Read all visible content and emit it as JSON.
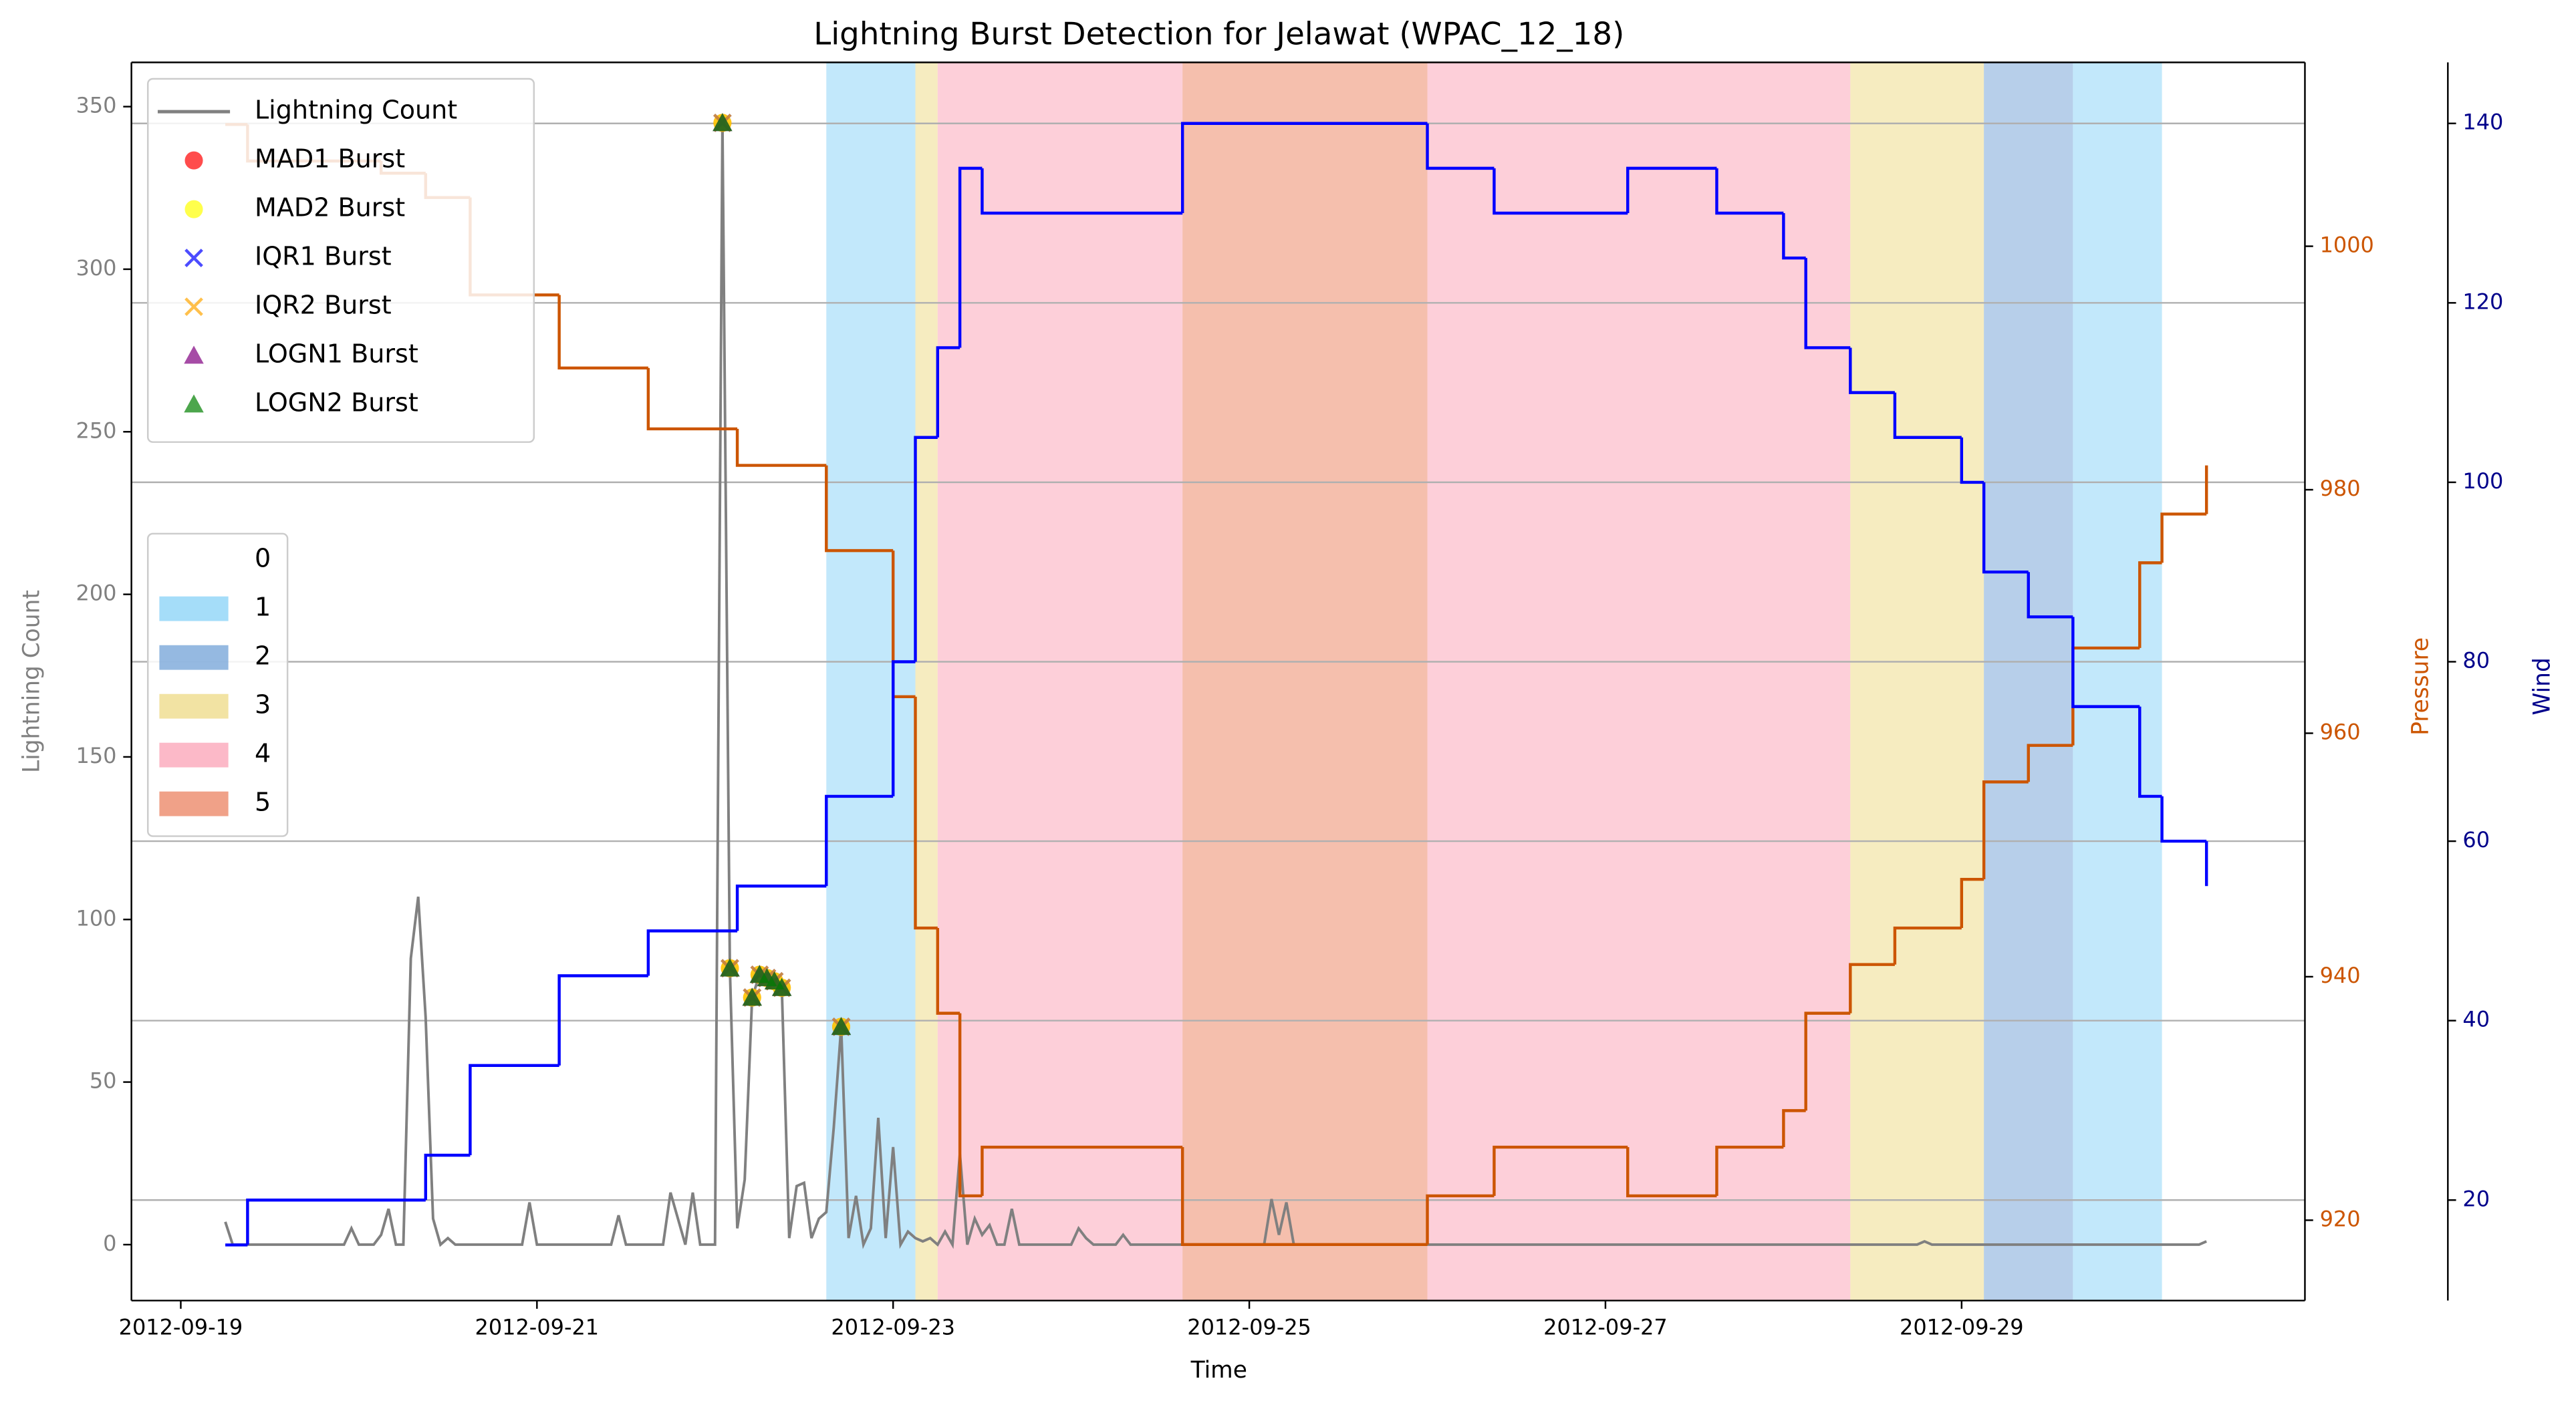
{
  "chart_data": {
    "type": "line",
    "title": "Lightning Burst Detection for Jelawat (WPAC_12_18)",
    "xlabel": "Time",
    "ylabel": "Lightning Count",
    "y2label": "Pressure",
    "y3label": "Wind",
    "xlim": [
      "2012-09-18 17:21",
      "2012-09-30 22:16"
    ],
    "xticks": [
      "2012-09-19",
      "2012-09-21",
      "2012-09-23",
      "2012-09-25",
      "2012-09-27",
      "2012-09-29"
    ],
    "ylim": [
      -17.2,
      363.6
    ],
    "yticks": [
      0,
      50,
      100,
      150,
      200,
      250,
      300,
      350
    ],
    "y2lim": [
      913.4,
      1015.1
    ],
    "y2ticks": [
      920,
      940,
      960,
      980,
      1000
    ],
    "y3lim": [
      8.8,
      146.8
    ],
    "y3ticks": [
      20,
      40,
      60,
      80,
      100,
      120,
      140
    ],
    "grid": "y3",
    "legend": "upper left",
    "series": [
      {
        "name": "Lightning Count",
        "color": "#808080",
        "marker": "line",
        "x": [
          "2012-09-19 06:00",
          "2012-09-19 07:00",
          "2012-09-19 22:00",
          "2012-09-19 23:00",
          "2012-09-20 00:00",
          "2012-09-20 02:00",
          "2012-09-20 03:00",
          "2012-09-20 04:00",
          "2012-09-20 05:00",
          "2012-09-20 06:00",
          "2012-09-20 07:00",
          "2012-09-20 08:00",
          "2012-09-20 09:00",
          "2012-09-20 10:00",
          "2012-09-20 11:00",
          "2012-09-20 12:00",
          "2012-09-20 13:00",
          "2012-09-20 22:00",
          "2012-09-20 23:00",
          "2012-09-21 00:00",
          "2012-09-21 10:00",
          "2012-09-21 11:00",
          "2012-09-21 12:00",
          "2012-09-21 17:00",
          "2012-09-21 18:00",
          "2012-09-21 19:00",
          "2012-09-21 20:00",
          "2012-09-21 21:00",
          "2012-09-21 22:00",
          "2012-09-22 00:00",
          "2012-09-22 01:00",
          "2012-09-22 02:00",
          "2012-09-22 03:00",
          "2012-09-22 04:00",
          "2012-09-22 05:00",
          "2012-09-22 06:00",
          "2012-09-22 07:00",
          "2012-09-22 08:00",
          "2012-09-22 09:00",
          "2012-09-22 10:00",
          "2012-09-22 11:00",
          "2012-09-22 12:00",
          "2012-09-22 13:00",
          "2012-09-22 14:00",
          "2012-09-22 15:00",
          "2012-09-22 16:00",
          "2012-09-22 17:00",
          "2012-09-22 18:00",
          "2012-09-22 19:00",
          "2012-09-22 20:00",
          "2012-09-22 21:00",
          "2012-09-22 22:00",
          "2012-09-22 23:00",
          "2012-09-23 00:00",
          "2012-09-23 01:00",
          "2012-09-23 02:00",
          "2012-09-23 03:00",
          "2012-09-23 04:00",
          "2012-09-23 05:00",
          "2012-09-23 06:00",
          "2012-09-23 07:00",
          "2012-09-23 08:00",
          "2012-09-23 09:00",
          "2012-09-23 10:00",
          "2012-09-23 11:00",
          "2012-09-23 12:00",
          "2012-09-23 13:00",
          "2012-09-23 14:00",
          "2012-09-23 15:00",
          "2012-09-23 16:00",
          "2012-09-23 17:00",
          "2012-09-24 00:00",
          "2012-09-24 01:00",
          "2012-09-24 02:00",
          "2012-09-24 03:00",
          "2012-09-24 06:00",
          "2012-09-24 07:00",
          "2012-09-24 08:00",
          "2012-09-25 02:00",
          "2012-09-25 03:00",
          "2012-09-25 04:00",
          "2012-09-25 05:00",
          "2012-09-25 06:00",
          "2012-09-28 18:00",
          "2012-09-28 19:00",
          "2012-09-28 20:00",
          "2012-09-30 08:00",
          "2012-09-30 09:00"
        ],
        "values": [
          7,
          0,
          0,
          5,
          0,
          0,
          3,
          11,
          0,
          0,
          88,
          107,
          70,
          8,
          0,
          2,
          0,
          0,
          13,
          0,
          0,
          9,
          0,
          0,
          16,
          8,
          0,
          16,
          0,
          0,
          345,
          85,
          5,
          20,
          76,
          83,
          82,
          81,
          79,
          2,
          18,
          19,
          2,
          8,
          10,
          36,
          67,
          2,
          15,
          0,
          5,
          39,
          2,
          30,
          0,
          4,
          2,
          1,
          2,
          0,
          4,
          0,
          28,
          0,
          8,
          3,
          6,
          0,
          0,
          11,
          0,
          0,
          5,
          2,
          0,
          0,
          3,
          0,
          0,
          14,
          3,
          13,
          0,
          0,
          1,
          0,
          0,
          1
        ]
      },
      {
        "name": "MAD1 Burst",
        "color": "#ff0000",
        "marker": "circle",
        "x": [
          "2012-09-22 01:00",
          "2012-09-22 02:00",
          "2012-09-22 05:00",
          "2012-09-22 06:00",
          "2012-09-22 07:00",
          "2012-09-22 08:00",
          "2012-09-22 09:00",
          "2012-09-22 17:00"
        ],
        "values": [
          345,
          85,
          76,
          83,
          82,
          81,
          79,
          67
        ]
      },
      {
        "name": "MAD2 Burst",
        "color": "#ffff00",
        "marker": "circle",
        "x": [
          "2012-09-22 01:00",
          "2012-09-22 02:00",
          "2012-09-22 05:00",
          "2012-09-22 06:00",
          "2012-09-22 07:00",
          "2012-09-22 08:00",
          "2012-09-22 09:00",
          "2012-09-22 17:00"
        ],
        "values": [
          345,
          85,
          76,
          83,
          82,
          81,
          79,
          67
        ]
      },
      {
        "name": "IQR1 Burst",
        "color": "#0000ff",
        "marker": "x",
        "x": [
          "2012-09-22 01:00",
          "2012-09-22 02:00",
          "2012-09-22 05:00",
          "2012-09-22 06:00",
          "2012-09-22 07:00",
          "2012-09-22 08:00",
          "2012-09-22 09:00",
          "2012-09-22 17:00"
        ],
        "values": [
          345,
          85,
          76,
          83,
          82,
          81,
          79,
          67
        ]
      },
      {
        "name": "IQR2 Burst",
        "color": "#ffa500",
        "marker": "x",
        "x": [
          "2012-09-22 01:00",
          "2012-09-22 02:00",
          "2012-09-22 05:00",
          "2012-09-22 06:00",
          "2012-09-22 07:00",
          "2012-09-22 08:00",
          "2012-09-22 09:00",
          "2012-09-22 17:00"
        ],
        "values": [
          345,
          85,
          76,
          83,
          82,
          81,
          79,
          67
        ]
      },
      {
        "name": "LOGN1 Burst",
        "color": "#800080",
        "marker": "triangle",
        "x": [
          "2012-09-22 01:00",
          "2012-09-22 02:00",
          "2012-09-22 05:00",
          "2012-09-22 06:00",
          "2012-09-22 07:00",
          "2012-09-22 08:00",
          "2012-09-22 09:00",
          "2012-09-22 17:00"
        ],
        "values": [
          345,
          85,
          76,
          83,
          82,
          81,
          79,
          67
        ]
      },
      {
        "name": "LOGN2 Burst",
        "color": "#008000",
        "marker": "triangle",
        "x": [
          "2012-09-22 01:00",
          "2012-09-22 02:00",
          "2012-09-22 05:00",
          "2012-09-22 06:00",
          "2012-09-22 07:00",
          "2012-09-22 08:00",
          "2012-09-22 09:00",
          "2012-09-22 17:00"
        ],
        "values": [
          345,
          85,
          76,
          83,
          82,
          81,
          79,
          67
        ]
      }
    ],
    "pressure": {
      "axis": "y2",
      "color": "#cc5500",
      "step": true,
      "x": [
        "2012-09-19 06:00",
        "2012-09-19 09:00",
        "2012-09-20 03:00",
        "2012-09-20 09:00",
        "2012-09-20 15:00",
        "2012-09-21 03:00",
        "2012-09-21 15:00",
        "2012-09-22 03:00",
        "2012-09-22 15:00",
        "2012-09-23 00:00",
        "2012-09-23 03:00",
        "2012-09-23 06:00",
        "2012-09-23 09:00",
        "2012-09-23 12:00",
        "2012-09-24 15:00",
        "2012-09-26 00:00",
        "2012-09-26 09:00",
        "2012-09-27 03:00",
        "2012-09-27 15:00",
        "2012-09-28 00:00",
        "2012-09-28 03:00",
        "2012-09-28 09:00",
        "2012-09-28 15:00",
        "2012-09-29 00:00",
        "2012-09-29 03:00",
        "2012-09-29 09:00",
        "2012-09-29 15:00",
        "2012-09-30 00:00",
        "2012-09-30 03:00",
        "2012-09-30 09:00"
      ],
      "values": [
        1010,
        1007,
        1006,
        1004,
        996,
        990,
        985,
        982,
        975,
        963,
        944,
        937,
        922,
        926,
        918,
        922,
        926,
        922,
        926,
        929,
        937,
        941,
        944,
        948,
        956,
        959,
        967,
        974,
        978,
        982
      ]
    },
    "wind": {
      "axis": "y3",
      "color": "#0000ff",
      "step": true,
      "x": [
        "2012-09-19 06:00",
        "2012-09-19 09:00",
        "2012-09-20 09:00",
        "2012-09-20 15:00",
        "2012-09-21 03:00",
        "2012-09-21 15:00",
        "2012-09-22 03:00",
        "2012-09-22 15:00",
        "2012-09-23 00:00",
        "2012-09-23 03:00",
        "2012-09-23 06:00",
        "2012-09-23 09:00",
        "2012-09-23 12:00",
        "2012-09-24 15:00",
        "2012-09-26 00:00",
        "2012-09-26 09:00",
        "2012-09-27 03:00",
        "2012-09-27 15:00",
        "2012-09-28 00:00",
        "2012-09-28 03:00",
        "2012-09-28 09:00",
        "2012-09-28 15:00",
        "2012-09-29 00:00",
        "2012-09-29 03:00",
        "2012-09-29 09:00",
        "2012-09-29 15:00",
        "2012-09-30 00:00",
        "2012-09-30 03:00",
        "2012-09-30 09:00"
      ],
      "values": [
        15,
        20,
        25,
        35,
        45,
        50,
        55,
        65,
        80,
        105,
        115,
        135,
        130,
        140,
        135,
        130,
        135,
        130,
        125,
        115,
        110,
        105,
        100,
        90,
        85,
        75,
        65,
        60,
        55
      ]
    },
    "classes": [
      {
        "label": "0",
        "color": "#ffffff"
      },
      {
        "label": "1",
        "color": "#8fd5f7"
      },
      {
        "label": "2",
        "color": "#7ba7d9"
      },
      {
        "label": "3",
        "color": "#efdc8c"
      },
      {
        "label": "4",
        "color": "#fba8ba"
      },
      {
        "label": "5",
        "color": "#ec8a6a"
      }
    ],
    "bands": [
      {
        "start": "2012-09-22 15:00",
        "end": "2012-09-23 03:00",
        "class": 1
      },
      {
        "start": "2012-09-23 03:00",
        "end": "2012-09-23 06:00",
        "class": 3
      },
      {
        "start": "2012-09-23 06:00",
        "end": "2012-09-24 15:00",
        "class": 4
      },
      {
        "start": "2012-09-24 15:00",
        "end": "2012-09-26 00:00",
        "class": 5
      },
      {
        "start": "2012-09-26 00:00",
        "end": "2012-09-28 09:00",
        "class": 4
      },
      {
        "start": "2012-09-28 09:00",
        "end": "2012-09-29 03:00",
        "class": 3
      },
      {
        "start": "2012-09-29 03:00",
        "end": "2012-09-29 15:00",
        "class": 2
      },
      {
        "start": "2012-09-29 15:00",
        "end": "2012-09-30 03:00",
        "class": 1
      }
    ]
  }
}
